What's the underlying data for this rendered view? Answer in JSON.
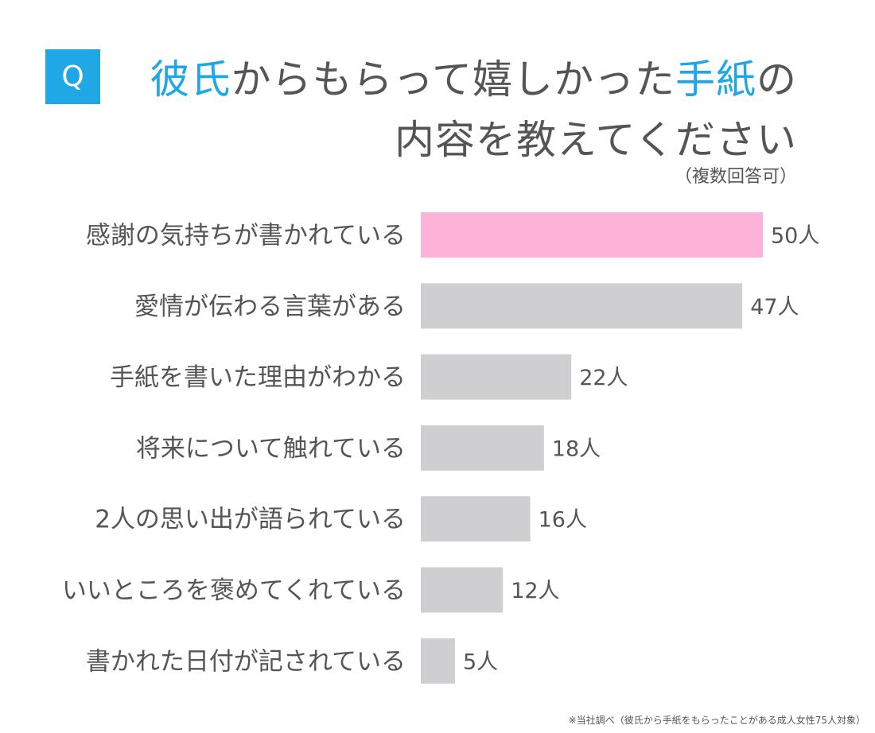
{
  "badge": "Q",
  "title": {
    "line1": [
      {
        "text": "彼氏",
        "accent": true
      },
      {
        "text": "からもらって嬉しかった",
        "accent": false
      },
      {
        "text": "手紙",
        "accent": true
      },
      {
        "text": "の",
        "accent": false
      }
    ],
    "line2": "内容を教えてください",
    "note": "（複数回答可）"
  },
  "chart_data": {
    "type": "bar",
    "orientation": "horizontal",
    "categories": [
      "感謝の気持ちが書かれている",
      "愛情が伝わる言葉がある",
      "手紙を書いた理由がわかる",
      "将来について触れている",
      "2人の思い出が語られている",
      "いいところを褒めてくれている",
      "書かれた日付が記されている"
    ],
    "values": [
      50,
      47,
      22,
      18,
      16,
      12,
      5
    ],
    "value_labels": [
      "50人",
      "47人",
      "22人",
      "18人",
      "16人",
      "12人",
      "5人"
    ],
    "xlim": [
      0,
      50
    ],
    "grid": false,
    "colors": {
      "highlight": "#fdb3d8",
      "default": "#cfcfd1"
    },
    "highlight_index": 0
  },
  "footnote": "※当社調べ（彼氏から手紙をもらったことがある成人女性75人対象）"
}
